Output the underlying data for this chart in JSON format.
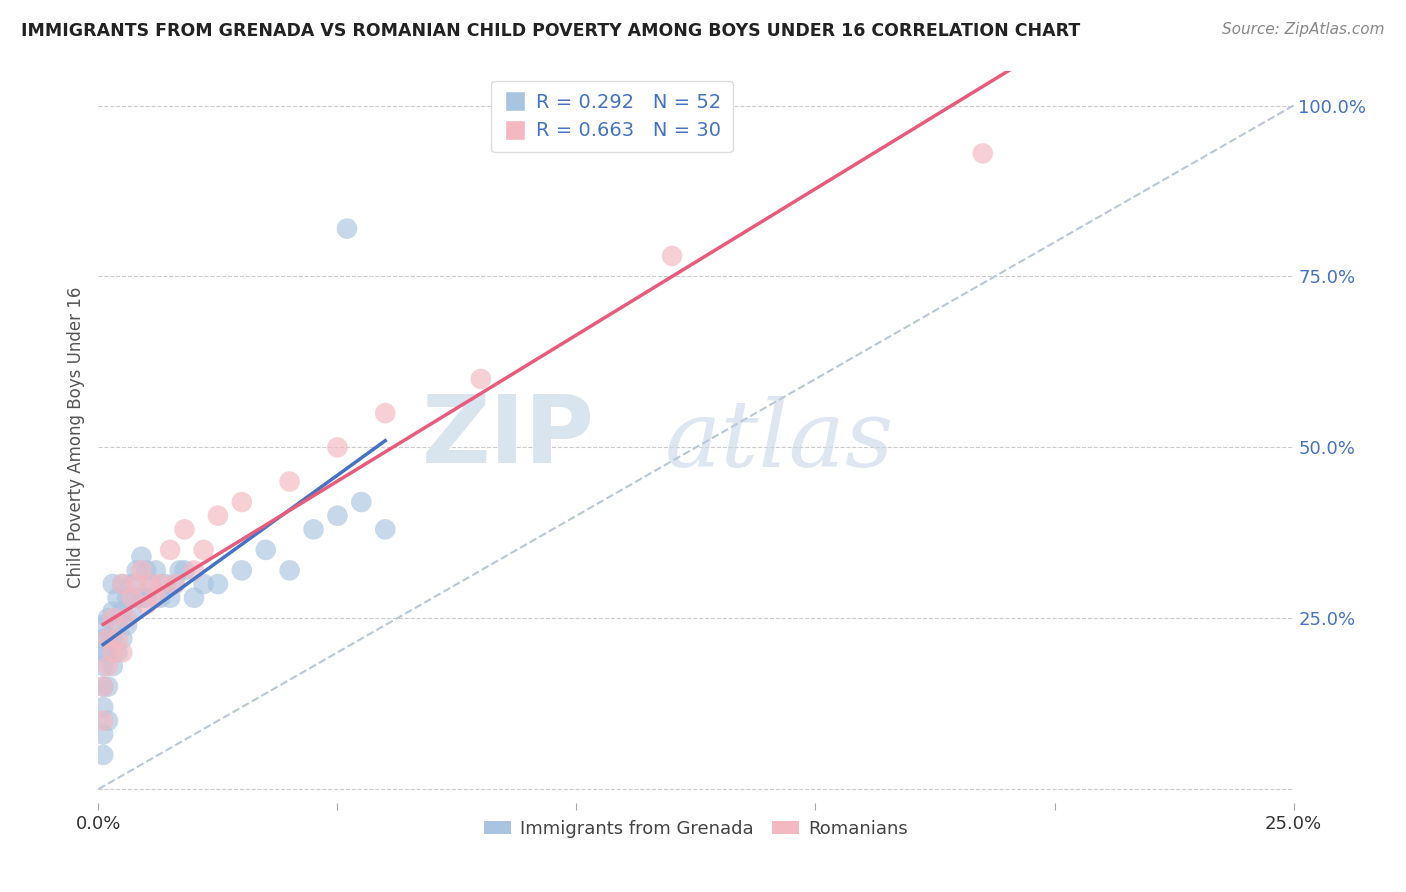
{
  "title": "IMMIGRANTS FROM GRENADA VS ROMANIAN CHILD POVERTY AMONG BOYS UNDER 16 CORRELATION CHART",
  "source": "Source: ZipAtlas.com",
  "ylabel": "Child Poverty Among Boys Under 16",
  "xmin": 0.0,
  "xmax": 0.25,
  "ymin": -0.02,
  "ymax": 1.05,
  "grenada_R": 0.292,
  "grenada_N": 52,
  "romanian_R": 0.663,
  "romanian_N": 30,
  "grenada_color": "#a8c4e0",
  "grenada_line_color": "#4472c4",
  "romanian_color": "#f4b8c1",
  "romanian_line_color": "#e85b7a",
  "ref_line_color": "#b8c8d8",
  "right_tick_color": "#4472c4",
  "grenada_x": [
    0.001,
    0.001,
    0.001,
    0.001,
    0.001,
    0.001,
    0.001,
    0.001,
    0.002,
    0.002,
    0.002,
    0.002,
    0.002,
    0.003,
    0.003,
    0.003,
    0.003,
    0.004,
    0.004,
    0.004,
    0.005,
    0.005,
    0.005,
    0.006,
    0.006,
    0.007,
    0.007,
    0.008,
    0.008,
    0.009,
    0.009,
    0.01,
    0.01,
    0.011,
    0.012,
    0.013,
    0.014,
    0.015,
    0.016,
    0.017,
    0.018,
    0.02,
    0.022,
    0.025,
    0.03,
    0.035,
    0.04,
    0.045,
    0.05,
    0.052,
    0.055,
    0.06
  ],
  "grenada_y": [
    0.05,
    0.08,
    0.12,
    0.15,
    0.18,
    0.2,
    0.22,
    0.24,
    0.1,
    0.15,
    0.2,
    0.22,
    0.25,
    0.18,
    0.22,
    0.26,
    0.3,
    0.2,
    0.24,
    0.28,
    0.22,
    0.26,
    0.3,
    0.24,
    0.28,
    0.26,
    0.3,
    0.28,
    0.32,
    0.28,
    0.34,
    0.28,
    0.32,
    0.3,
    0.32,
    0.28,
    0.3,
    0.28,
    0.3,
    0.32,
    0.32,
    0.28,
    0.3,
    0.3,
    0.32,
    0.35,
    0.32,
    0.38,
    0.4,
    0.82,
    0.42,
    0.38
  ],
  "romanian_x": [
    0.001,
    0.001,
    0.002,
    0.002,
    0.003,
    0.003,
    0.004,
    0.005,
    0.005,
    0.006,
    0.007,
    0.008,
    0.009,
    0.01,
    0.011,
    0.012,
    0.013,
    0.015,
    0.016,
    0.018,
    0.02,
    0.022,
    0.025,
    0.03,
    0.04,
    0.05,
    0.06,
    0.08,
    0.12,
    0.185
  ],
  "romanian_y": [
    0.1,
    0.15,
    0.18,
    0.22,
    0.2,
    0.25,
    0.22,
    0.2,
    0.3,
    0.25,
    0.28,
    0.3,
    0.32,
    0.27,
    0.3,
    0.28,
    0.3,
    0.35,
    0.3,
    0.38,
    0.32,
    0.35,
    0.4,
    0.42,
    0.45,
    0.5,
    0.55,
    0.6,
    0.78,
    0.93
  ]
}
